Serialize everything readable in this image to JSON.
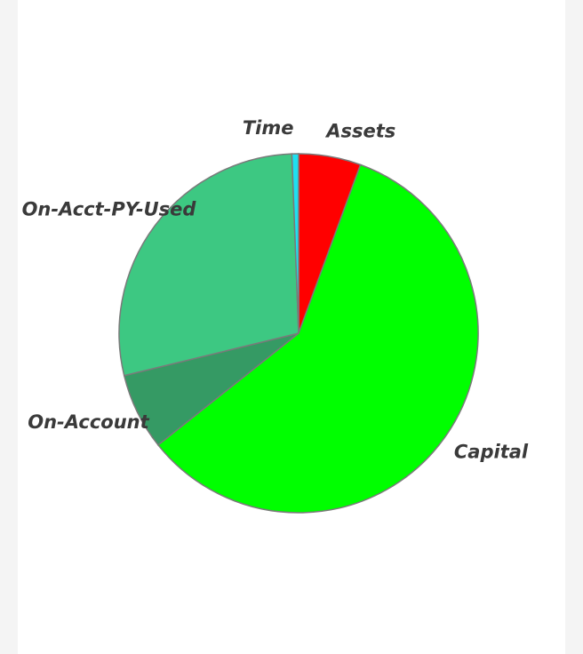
{
  "chart_data": {
    "type": "pie",
    "categories": [
      "Assets",
      "Capital",
      "On-Account",
      "On-Acct-PY-Used",
      "Time"
    ],
    "values": [
      5.6,
      58.7,
      6.9,
      28.2,
      0.6
    ],
    "colors": [
      "#ff0000",
      "#00ff00",
      "#359a64",
      "#3dc882",
      "#1ee0f0"
    ]
  }
}
